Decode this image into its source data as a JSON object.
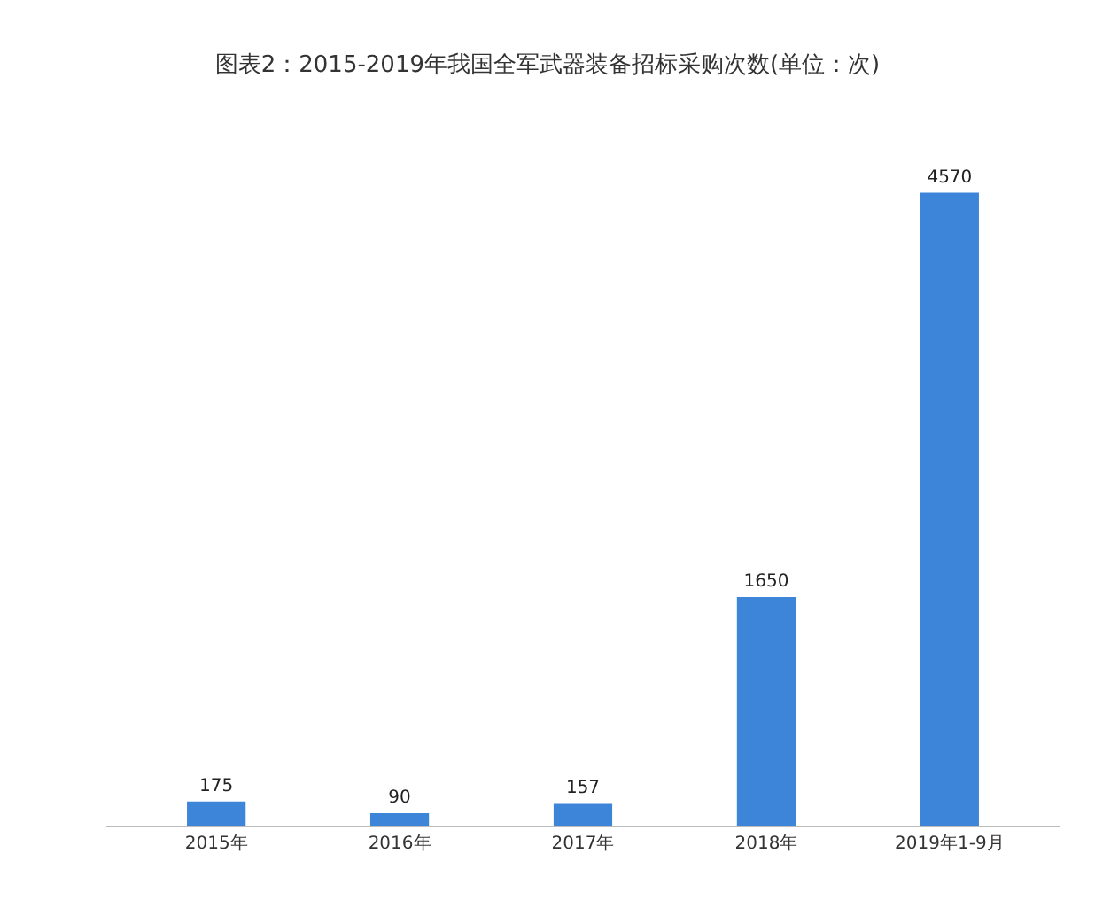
{
  "chart_data": {
    "type": "bar",
    "title": "图表2：2015-2019年我国全军武器装备招标采购次数(单位：次)",
    "categories": [
      "2015年",
      "2016年",
      "2017年",
      "2018年",
      "2019年1-9月"
    ],
    "values": [
      175,
      90,
      157,
      1650,
      4570
    ],
    "color": "#3d85d8",
    "data_labels": true,
    "tick_labels": "x"
  }
}
